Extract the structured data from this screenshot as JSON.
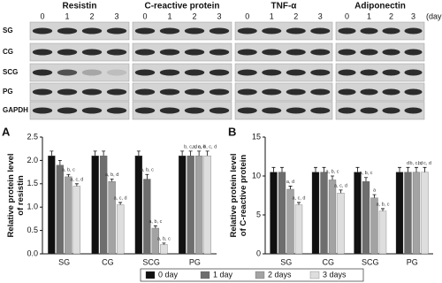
{
  "blot": {
    "proteins": [
      "Resistin",
      "C-reactive protein",
      "TNF-α",
      "Adiponectin"
    ],
    "days": [
      "0",
      "1",
      "2",
      "3"
    ],
    "days_unit": "(days)",
    "rows": [
      "SG",
      "CG",
      "SCG",
      "PG",
      "GAPDH"
    ]
  },
  "chart_data": [
    {
      "type": "bar",
      "panel": "A",
      "ylabel": [
        "Relative protein level",
        "of resistin"
      ],
      "categories": [
        "SG",
        "CG",
        "SCG",
        "PG"
      ],
      "ylim": [
        0,
        2.5
      ],
      "yticks": [
        0.0,
        0.5,
        1.0,
        1.5,
        2.0,
        2.5
      ],
      "yticks_labels_note_free": true,
      "series": [
        {
          "name": "0 day",
          "color": "#111111",
          "values": [
            2.1,
            2.1,
            2.1,
            2.1
          ],
          "errors": [
            0.1,
            0.1,
            0.1,
            0.1
          ],
          "annotations": [
            null,
            null,
            null,
            null
          ]
        },
        {
          "name": "1 day",
          "color": "#6e6e6e",
          "values": [
            1.9,
            2.1,
            1.6,
            2.1
          ],
          "errors": [
            0.1,
            0.1,
            0.1,
            0.1
          ],
          "annotations": [
            null,
            null,
            "a, b, c",
            "b, c, d"
          ]
        },
        {
          "name": "2 days",
          "color": "#a3a3a3",
          "values": [
            1.65,
            1.55,
            0.55,
            2.1
          ],
          "errors": [
            0.05,
            0.05,
            0.05,
            0.1
          ],
          "annotations": [
            "a, b, c",
            "a, b, d",
            "a, b, c",
            "a, c, d"
          ]
        },
        {
          "name": "3 days",
          "color": "#dedede",
          "values": [
            1.45,
            1.05,
            0.2,
            2.1
          ],
          "errors": [
            0.05,
            0.05,
            0.03,
            0.1
          ],
          "annotations": [
            "a, c, d",
            "a, c, d",
            "a, b, c",
            "a, b, c, d"
          ]
        }
      ]
    },
    {
      "type": "bar",
      "panel": "B",
      "ylabel": [
        "Relative protein level",
        "of C-reactive protein"
      ],
      "categories": [
        "SG",
        "CG",
        "SCG",
        "PG"
      ],
      "ylim": [
        0,
        15
      ],
      "yticks": [
        0,
        5,
        10,
        15
      ],
      "series": [
        {
          "color": "#111111",
          "values": [
            10.5,
            10.5,
            10.5,
            10.5
          ],
          "errors": [
            0.6,
            0.6,
            0.6,
            0.6
          ],
          "annotations": [
            null,
            null,
            null,
            null
          ]
        },
        {
          "color": "#6e6e6e",
          "values": [
            10.5,
            10.5,
            9.3,
            10.5
          ],
          "errors": [
            0.6,
            0.6,
            0.5,
            0.6
          ],
          "annotations": [
            null,
            null,
            "a, b, c",
            "d"
          ]
        },
        {
          "color": "#a3a3a3",
          "values": [
            8.3,
            9.5,
            7.2,
            10.5
          ],
          "errors": [
            0.4,
            0.5,
            0.4,
            0.6
          ],
          "annotations": [
            "a, d",
            "a, b, c",
            "a",
            "b, c, d"
          ]
        },
        {
          "color": "#dedede",
          "values": [
            6.3,
            7.8,
            5.5,
            10.5
          ],
          "errors": [
            0.3,
            0.4,
            0.3,
            0.6
          ],
          "annotations": [
            "a, c, d",
            "a, c, d",
            "a, b, c",
            "b, c, d"
          ]
        }
      ]
    }
  ]
}
